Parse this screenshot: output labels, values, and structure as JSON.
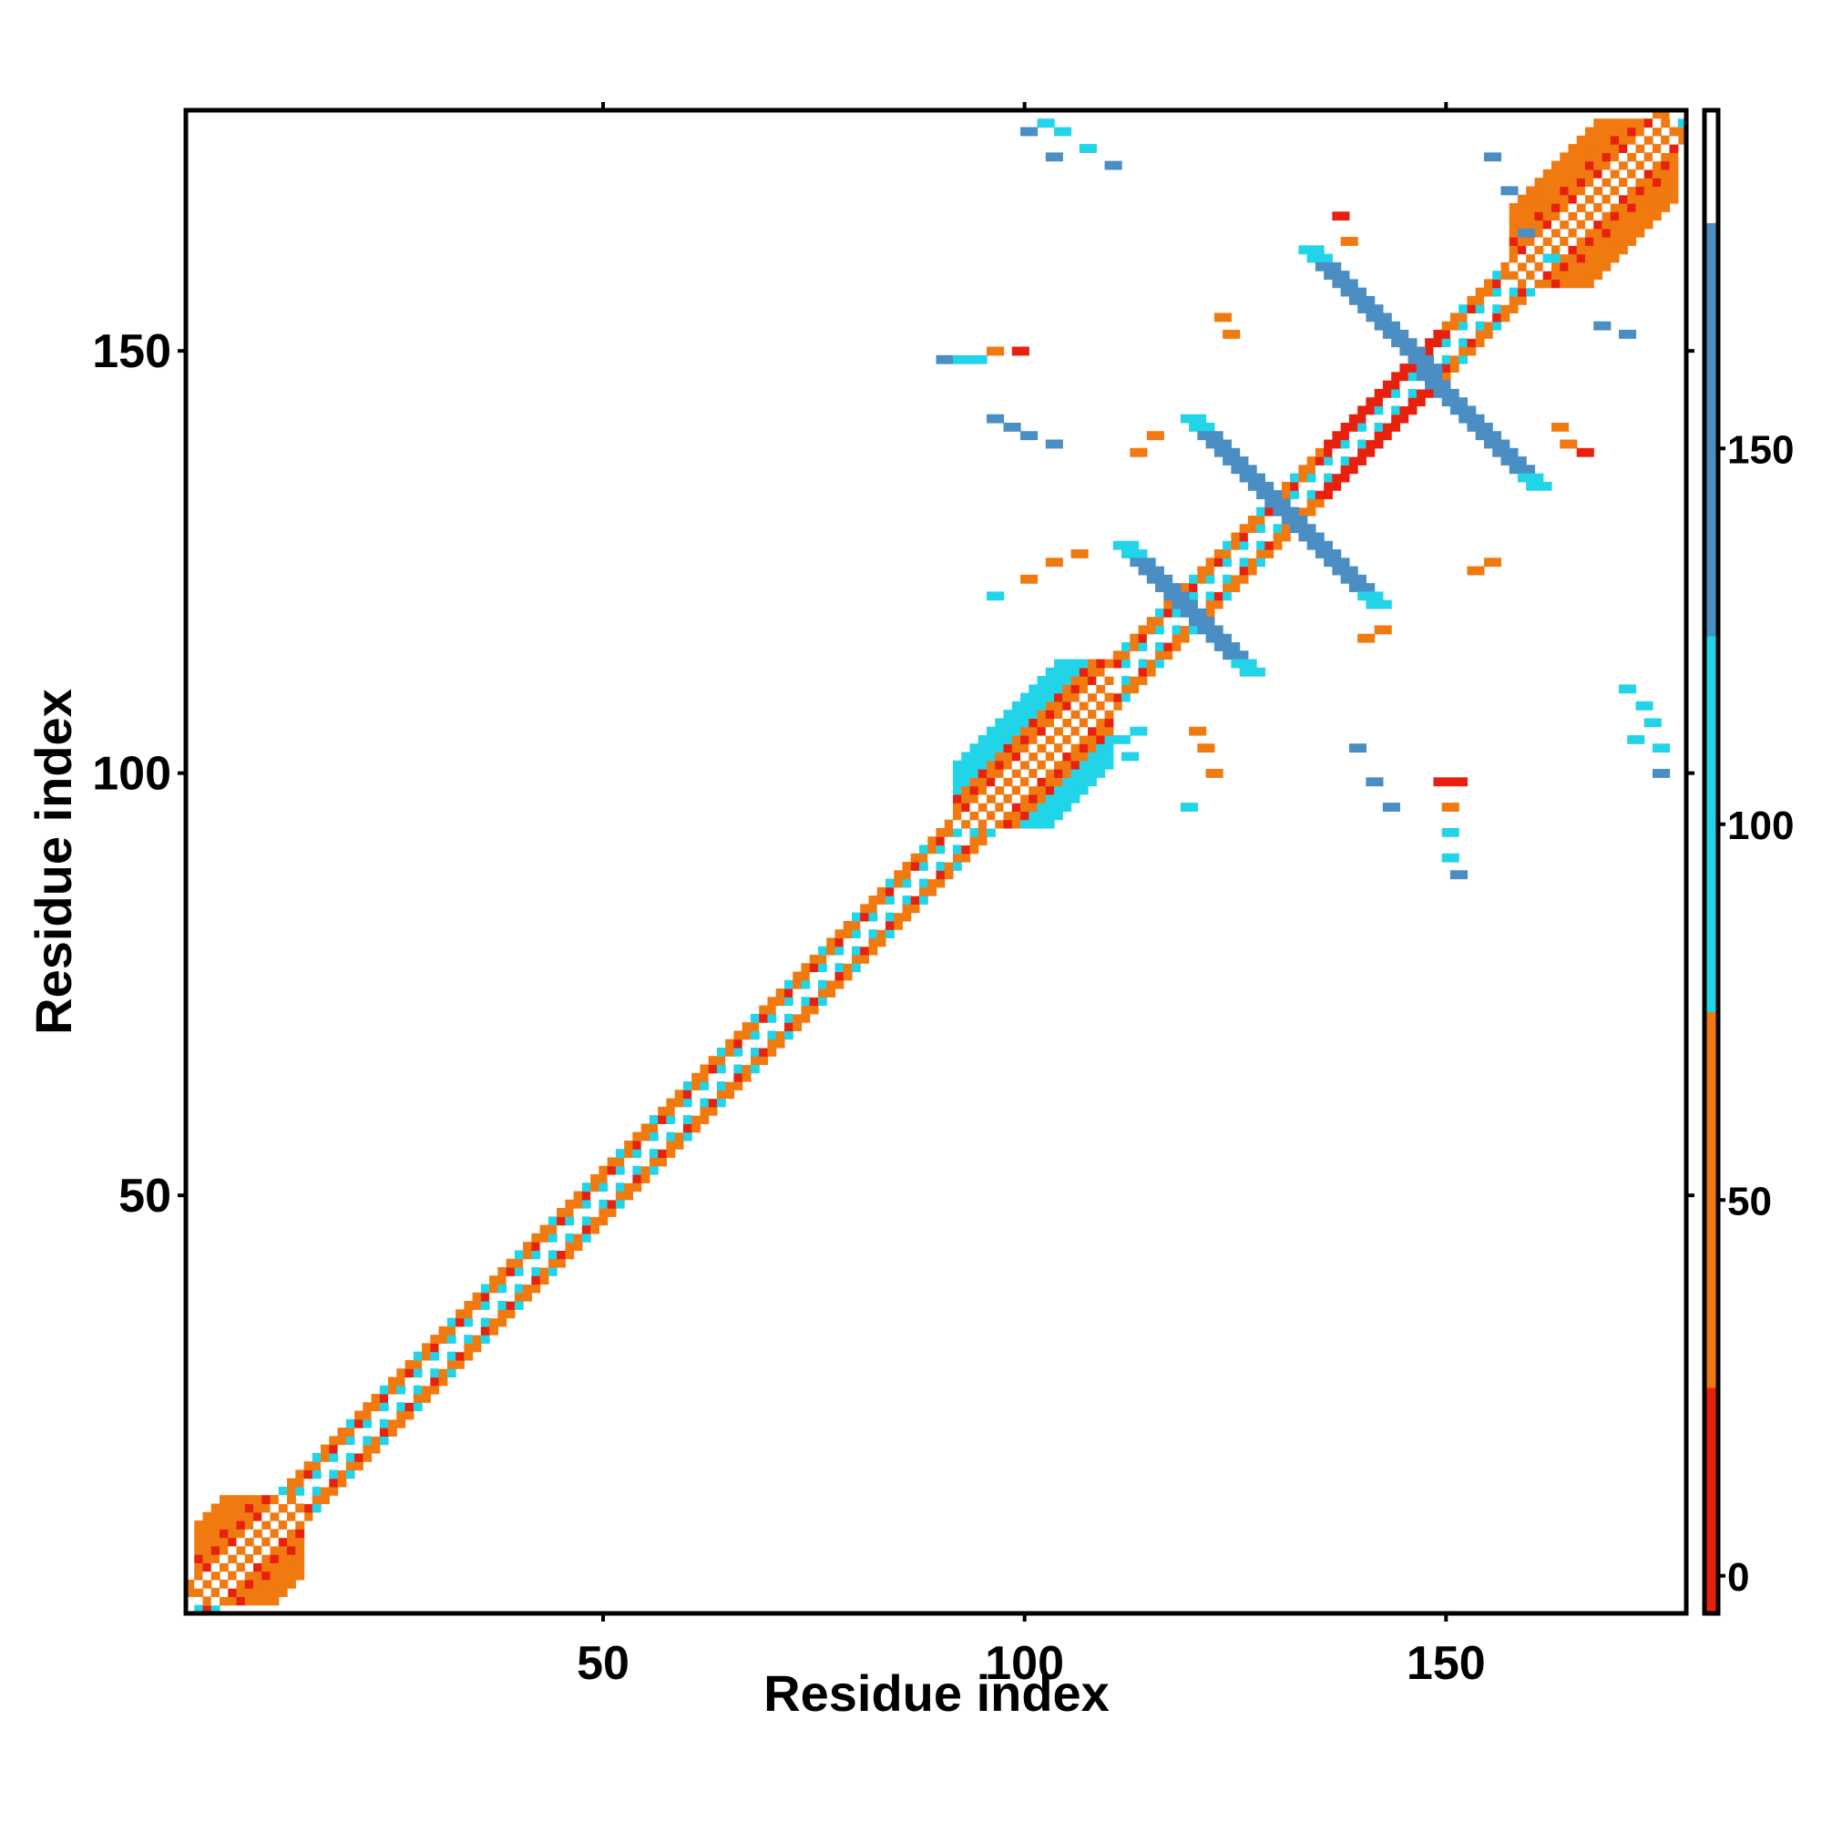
{
  "chart_data": {
    "type": "heatmap",
    "title": "",
    "xlabel": "Residue index",
    "ylabel": "Residue index",
    "xlim": [
      1,
      178
    ],
    "ylim": [
      1,
      178
    ],
    "x_ticks": [
      50,
      100,
      150
    ],
    "y_ticks": [
      50,
      100,
      150
    ],
    "colorbar": {
      "ticks": [
        0,
        50,
        100,
        150
      ],
      "range": [
        -5,
        195
      ],
      "bands": [
        {
          "from": -5,
          "to": 25,
          "color": "#e8210e"
        },
        {
          "from": 25,
          "to": 75,
          "color": "#f07a10"
        },
        {
          "from": 75,
          "to": 125,
          "color": "#22d4e8"
        },
        {
          "from": 125,
          "to": 180,
          "color": "#4a8ec4"
        },
        {
          "from": 180,
          "to": 195,
          "color": "#ffffff"
        }
      ]
    },
    "diagonal_band": {
      "from": 1,
      "to": 178,
      "half_width": 3
    },
    "blocks": [
      {
        "x0": 92,
        "x1": 110,
        "y0": 94,
        "y1": 113,
        "value": 100
      },
      {
        "x0": 158,
        "x1": 177,
        "y0": 158,
        "y1": 177,
        "value": 60
      },
      {
        "x0": 2,
        "x1": 14,
        "y0": 2,
        "y1": 14,
        "value": 40
      }
    ],
    "antidiagonals": [
      {
        "x0": 112,
        "y0": 127,
        "x1": 127,
        "y1": 112,
        "value": 160
      },
      {
        "x0": 120,
        "y0": 142,
        "x1": 142,
        "y1": 120,
        "value": 160
      },
      {
        "x0": 134,
        "y0": 162,
        "x1": 161,
        "y1": 134,
        "value": 160
      }
    ],
    "contacts": [
      {
        "x": 102,
        "y": 177,
        "value": 110
      },
      {
        "x": 104,
        "y": 176,
        "value": 105
      },
      {
        "x": 107,
        "y": 174,
        "value": 100
      },
      {
        "x": 110,
        "y": 172,
        "value": 140
      },
      {
        "x": 103,
        "y": 173,
        "value": 150
      },
      {
        "x": 100,
        "y": 176,
        "value": 150
      },
      {
        "x": 90,
        "y": 149,
        "value": 150
      },
      {
        "x": 92,
        "y": 149,
        "value": 110
      },
      {
        "x": 94,
        "y": 149,
        "value": 100
      },
      {
        "x": 96,
        "y": 150,
        "value": 60
      },
      {
        "x": 99,
        "y": 150,
        "value": 10
      },
      {
        "x": 96,
        "y": 142,
        "value": 150
      },
      {
        "x": 98,
        "y": 141,
        "value": 150
      },
      {
        "x": 100,
        "y": 140,
        "value": 150
      },
      {
        "x": 103,
        "y": 139,
        "value": 150
      },
      {
        "x": 96,
        "y": 121,
        "value": 100
      },
      {
        "x": 100,
        "y": 123,
        "value": 50
      },
      {
        "x": 103,
        "y": 125,
        "value": 40
      },
      {
        "x": 106,
        "y": 126,
        "value": 60
      },
      {
        "x": 113,
        "y": 105,
        "value": 100
      },
      {
        "x": 111,
        "y": 104,
        "value": 110
      },
      {
        "x": 112,
        "y": 102,
        "value": 110
      },
      {
        "x": 120,
        "y": 105,
        "value": 60
      },
      {
        "x": 121,
        "y": 103,
        "value": 50
      },
      {
        "x": 122,
        "y": 100,
        "value": 40
      },
      {
        "x": 119,
        "y": 96,
        "value": 100
      },
      {
        "x": 113,
        "y": 138,
        "value": 40
      },
      {
        "x": 115,
        "y": 140,
        "value": 30
      },
      {
        "x": 124,
        "y": 152,
        "value": 40
      },
      {
        "x": 123,
        "y": 154,
        "value": 50
      },
      {
        "x": 137,
        "y": 166,
        "value": 10
      },
      {
        "x": 138,
        "y": 163,
        "value": 60
      },
      {
        "x": 140,
        "y": 116,
        "value": 40
      },
      {
        "x": 142,
        "y": 117,
        "value": 40
      },
      {
        "x": 153,
        "y": 124,
        "value": 40
      },
      {
        "x": 155,
        "y": 125,
        "value": 50
      },
      {
        "x": 149,
        "y": 99,
        "value": 10
      },
      {
        "x": 151,
        "y": 99,
        "value": 20
      },
      {
        "x": 150,
        "y": 96,
        "value": 50
      },
      {
        "x": 150,
        "y": 93,
        "value": 100
      },
      {
        "x": 150,
        "y": 90,
        "value": 120
      },
      {
        "x": 151,
        "y": 88,
        "value": 150
      },
      {
        "x": 139,
        "y": 103,
        "value": 150
      },
      {
        "x": 141,
        "y": 99,
        "value": 150
      },
      {
        "x": 143,
        "y": 96,
        "value": 150
      },
      {
        "x": 171,
        "y": 110,
        "value": 110
      },
      {
        "x": 173,
        "y": 108,
        "value": 100
      },
      {
        "x": 174,
        "y": 106,
        "value": 100
      },
      {
        "x": 172,
        "y": 104,
        "value": 120
      },
      {
        "x": 175,
        "y": 103,
        "value": 110
      },
      {
        "x": 175,
        "y": 100,
        "value": 150
      },
      {
        "x": 155,
        "y": 173,
        "value": 150
      },
      {
        "x": 157,
        "y": 169,
        "value": 150
      },
      {
        "x": 159,
        "y": 164,
        "value": 150
      },
      {
        "x": 162,
        "y": 161,
        "value": 120
      },
      {
        "x": 168,
        "y": 153,
        "value": 150
      },
      {
        "x": 171,
        "y": 152,
        "value": 150
      },
      {
        "x": 164,
        "y": 139,
        "value": 60
      },
      {
        "x": 166,
        "y": 138,
        "value": 10
      },
      {
        "x": 163,
        "y": 141,
        "value": 40
      }
    ]
  }
}
